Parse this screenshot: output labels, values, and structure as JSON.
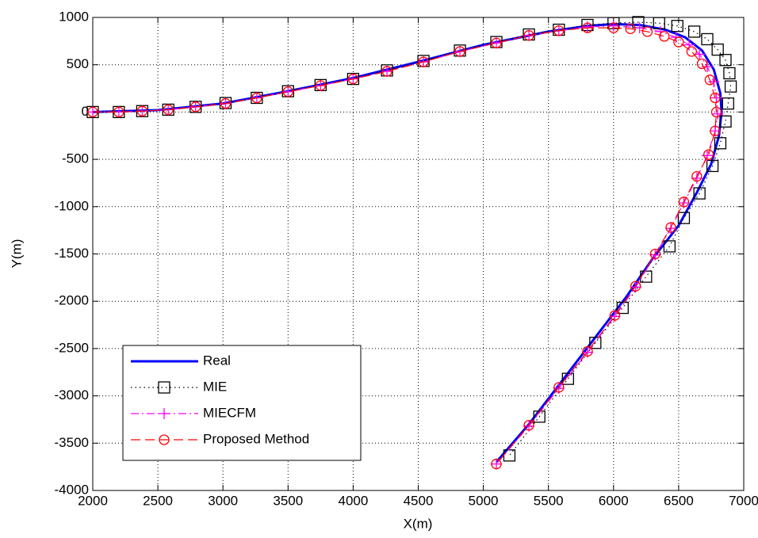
{
  "chart_data": {
    "type": "line",
    "xlabel": "X(m)",
    "ylabel": "Y(m)",
    "xlim": [
      2000,
      7000
    ],
    "xticks": [
      2000,
      2500,
      3000,
      3500,
      4000,
      4500,
      5000,
      5500,
      6000,
      6500,
      7000
    ],
    "ylim": [
      -4000,
      1000
    ],
    "yticks": [
      -4000,
      -3500,
      -3000,
      -2500,
      -2000,
      -1500,
      -1000,
      -500,
      0,
      500,
      1000
    ],
    "grid": true,
    "legend": "lower left",
    "series": [
      {
        "name": "Real",
        "color": "#0000ff",
        "linestyle": "solid",
        "marker": "none",
        "x": [
          2000,
          2500,
          3000,
          3500,
          4000,
          4500,
          5000,
          5500,
          5800,
          6000,
          6200,
          6400,
          6550,
          6680,
          6770,
          6820,
          6830,
          6810,
          6750,
          6640,
          6500,
          6300,
          6100,
          5850,
          5600,
          5350,
          5100
        ],
        "values": [
          0,
          20,
          90,
          220,
          360,
          530,
          710,
          850,
          910,
          930,
          920,
          870,
          790,
          650,
          450,
          200,
          0,
          -250,
          -550,
          -850,
          -1200,
          -1550,
          -1950,
          -2400,
          -2850,
          -3300,
          -3700
        ]
      },
      {
        "name": "MIE",
        "color": "#000000",
        "linestyle": "dotted",
        "marker": "square",
        "x": [
          2000,
          2200,
          2380,
          2580,
          2790,
          3020,
          3260,
          3500,
          3750,
          4000,
          4260,
          4540,
          4820,
          5100,
          5350,
          5580,
          5800,
          6000,
          6190,
          6350,
          6490,
          6620,
          6720,
          6800,
          6860,
          6890,
          6900,
          6880,
          6860,
          6820,
          6760,
          6660,
          6540,
          6430,
          6250,
          6070,
          5860,
          5650,
          5430,
          5200
        ],
        "values": [
          0,
          0,
          10,
          25,
          55,
          95,
          150,
          220,
          285,
          350,
          440,
          540,
          650,
          740,
          820,
          870,
          920,
          940,
          950,
          940,
          910,
          850,
          770,
          660,
          550,
          410,
          270,
          90,
          -100,
          -330,
          -570,
          -860,
          -1120,
          -1420,
          -1740,
          -2070,
          -2440,
          -2820,
          -3220,
          -3630
        ]
      },
      {
        "name": "MIECFM",
        "color": "#ff00ff",
        "linestyle": "dashdot",
        "marker": "plus",
        "x": [
          2000,
          2200,
          2380,
          2580,
          2790,
          3020,
          3260,
          3500,
          3750,
          4000,
          4260,
          4540,
          4820,
          5100,
          5350,
          5580,
          5800,
          6000,
          6200,
          6360,
          6480,
          6580,
          6660,
          6720,
          6770,
          6790,
          6800,
          6780,
          6720,
          6640,
          6540,
          6440,
          6320,
          6170,
          6010,
          5800,
          5580,
          5350,
          5100
        ],
        "values": [
          0,
          0,
          10,
          25,
          55,
          90,
          150,
          215,
          280,
          350,
          430,
          530,
          640,
          730,
          810,
          860,
          900,
          910,
          890,
          850,
          790,
          710,
          610,
          480,
          320,
          150,
          -20,
          -200,
          -460,
          -700,
          -960,
          -1230,
          -1510,
          -1850,
          -2160,
          -2540,
          -2920,
          -3320,
          -3720
        ]
      },
      {
        "name": "Proposed Method",
        "color": "#ff0000",
        "linestyle": "dashed",
        "marker": "circle",
        "x": [
          2000,
          2200,
          2380,
          2580,
          2790,
          3020,
          3260,
          3500,
          3750,
          4000,
          4260,
          4540,
          4820,
          5100,
          5350,
          5580,
          5800,
          6000,
          6130,
          6260,
          6390,
          6500,
          6600,
          6680,
          6740,
          6780,
          6790,
          6780,
          6730,
          6640,
          6540,
          6440,
          6320,
          6170,
          6010,
          5800,
          5580,
          5350,
          5100
        ],
        "values": [
          0,
          0,
          10,
          25,
          55,
          90,
          150,
          215,
          280,
          350,
          430,
          530,
          640,
          730,
          810,
          860,
          890,
          890,
          880,
          850,
          800,
          740,
          640,
          510,
          340,
          150,
          0,
          -200,
          -450,
          -680,
          -950,
          -1220,
          -1500,
          -1840,
          -2150,
          -2530,
          -2910,
          -3310,
          -3720
        ]
      }
    ]
  }
}
